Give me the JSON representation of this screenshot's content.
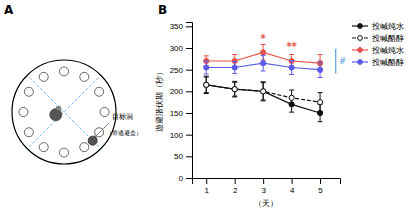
{
  "chart_data": [
    {
      "type": "diagram",
      "title": "A",
      "annotations": [
        {
          "text": "目标洞"
        },
        {
          "text": "（带逃避盒）"
        }
      ]
    },
    {
      "type": "line",
      "title": "B",
      "x_label": "（天）",
      "y_label": "遊避潜伏期（秒）",
      "x": [
        1,
        2,
        3,
        4,
        5
      ],
      "series": [
        {
          "name": "投喊纯水",
          "color": "#111111",
          "line_style": "solid",
          "marker": "circle",
          "values": [
            215,
            205,
            200,
            170,
            150
          ],
          "errors": [
            20,
            18,
            22,
            18,
            20
          ]
        },
        {
          "name": "投喊酪醇",
          "color": "#111111",
          "line_style": "dashed",
          "marker": "open-circle",
          "values": [
            215,
            205,
            200,
            185,
            175
          ],
          "errors": [
            18,
            16,
            20,
            18,
            22
          ]
        },
        {
          "name": "投喊纯水",
          "color": "#e8534a",
          "line_style": "solid",
          "marker": "circle",
          "values": [
            270,
            270,
            290,
            270,
            265
          ],
          "errors": [
            12,
            15,
            18,
            15,
            20
          ]
        },
        {
          "name": "投喊酪醇",
          "color": "#5b5be8",
          "line_style": "solid",
          "marker": "circle",
          "values": [
            255,
            255,
            265,
            255,
            250
          ],
          "errors": [
            15,
            14,
            18,
            16,
            18
          ]
        }
      ],
      "xlim": [
        0.5,
        5.7
      ],
      "xticks": [
        1,
        2,
        3,
        4,
        5
      ],
      "ylim": [
        0,
        360
      ],
      "yticks": [
        0,
        50,
        100,
        150,
        200,
        250,
        300,
        350
      ],
      "grid": false,
      "legend": "upper right",
      "annotations": [
        {
          "text": "*",
          "x": 3.0,
          "y": 313,
          "color": "#e8534a"
        },
        {
          "text": "**",
          "x": 4.0,
          "y": 296,
          "color": "#e8534a"
        },
        {
          "text": "#",
          "x": 5.55,
          "y": 270,
          "y1": 242,
          "y2": 298,
          "color": "#5b9bd5"
        }
      ]
    }
  ]
}
